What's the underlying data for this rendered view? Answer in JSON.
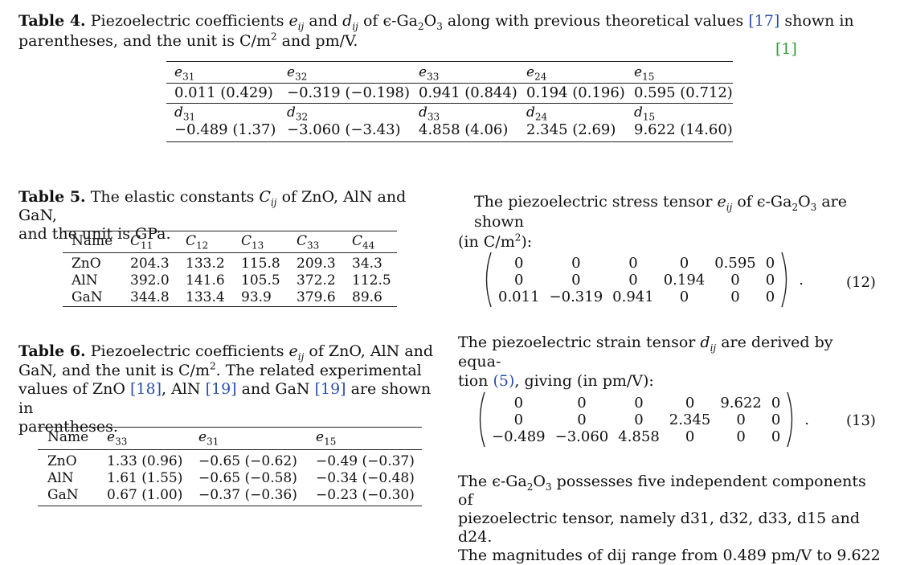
{
  "table4": {
    "caption_label": "Table 4.",
    "caption_line1_a": "Piezoelectric coefficients",
    "caption_line1_e": "e",
    "caption_line1_e_sub": "ij",
    "caption_line1_and": "and",
    "caption_line1_d": "d",
    "caption_line1_d_sub": "ij",
    "caption_line1_b": "of ϵ-Ga",
    "caption_ga_sub": "2",
    "caption_o": "O",
    "caption_o_sub": "3",
    "caption_line1_c": "along with previous theoretical values",
    "caption_ref": "[17]",
    "caption_line1_end": "shown in",
    "caption_line2_a": "parentheses, and the unit is C/m",
    "caption_line2_sup": "2",
    "caption_line2_b": "and pm/V.",
    "margin_ref": "[1]",
    "e_headers": [
      "e31",
      "e32",
      "e33",
      "e24",
      "e15"
    ],
    "e_values": [
      "0.011 (0.429)",
      "−0.319 (−0.198)",
      "0.941 (0.844)",
      "0.194 (0.196)",
      "0.595 (0.712)"
    ],
    "d_headers": [
      "d31",
      "d32",
      "d33",
      "d24",
      "d15"
    ],
    "d_values": [
      "−0.489 (1.37)",
      "−3.060 (−3.43)",
      "4.858 (4.06)",
      "2.345 (2.69)",
      "9.622 (14.60)"
    ]
  },
  "table5": {
    "caption_label": "Table 5.",
    "caption_a": "The elastic constants",
    "caption_c": "C",
    "caption_c_sub": "ij",
    "caption_b": "of ZnO, AlN and GaN,",
    "caption_line2": "and the unit is GPa.",
    "headers": [
      "Name",
      "C11",
      "C12",
      "C13",
      "C33",
      "C44"
    ],
    "rows": [
      [
        "ZnO",
        "204.3",
        "133.2",
        "115.8",
        "209.3",
        "34.3"
      ],
      [
        "AlN",
        "392.0",
        "141.6",
        "105.5",
        "372.2",
        "112.5"
      ],
      [
        "GaN",
        "344.8",
        "133.4",
        "93.9",
        "379.6",
        "89.6"
      ]
    ]
  },
  "table6": {
    "caption_label": "Table 6.",
    "caption_l1_a": "Piezoelectric coefficients",
    "caption_e": "e",
    "caption_e_sub": "ij",
    "caption_l1_b": "of ZnO, AlN and",
    "caption_l2_a": "GaN, and the unit is C/m",
    "caption_l2_sup": "2",
    "caption_l2_b": ". The related experimental",
    "caption_l3_a": "values of ZnO",
    "caption_ref18": "[18]",
    "caption_l3_b": ", AlN",
    "caption_ref19a": "[19]",
    "caption_l3_c": "and GaN",
    "caption_ref19b": "[19]",
    "caption_l3_d": "are shown in",
    "caption_l4": "parentheses.",
    "headers": [
      "Name",
      "e33",
      "e31",
      "e15"
    ],
    "rows": [
      [
        "ZnO",
        "1.33 (0.96)",
        "−0.65 (−0.62)",
        "−0.49 (−0.37)"
      ],
      [
        "AlN",
        "1.61 (1.55)",
        "−0.65 (−0.58)",
        "−0.34 (−0.48)"
      ],
      [
        "GaN",
        "0.67 (1.00)",
        "−0.37 (−0.36)",
        "−0.23 (−0.30)"
      ]
    ]
  },
  "right": {
    "p1_a": "The piezoelectric stress tensor",
    "p1_e": "e",
    "p1_e_sub": "ij",
    "p1_b": "of ϵ-Ga",
    "p1_sub2": "2",
    "p1_o": "O",
    "p1_sub3": "3",
    "p1_c": "are shown",
    "p1_line2_a": "(in C/m",
    "p1_line2_sup": "2",
    "p1_line2_b": "):",
    "matrix12": [
      [
        "0",
        "0",
        "0",
        "0",
        "0.595",
        "0"
      ],
      [
        "0",
        "0",
        "0",
        "0.194",
        "0",
        "0"
      ],
      [
        "0.011",
        "−0.319",
        "0.941",
        "0",
        "0",
        "0"
      ]
    ],
    "eq12_label": "(12)",
    "p2_a": "The piezoelectric strain tensor",
    "p2_d": "d",
    "p2_d_sub": "ij",
    "p2_b": "are derived by equa-",
    "p2_line2_a": "tion",
    "p2_ref5": "(5)",
    "p2_line2_b": ", giving (in pm/V):",
    "matrix13": [
      [
        "0",
        "0",
        "0",
        "0",
        "9.622",
        "0"
      ],
      [
        "0",
        "0",
        "0",
        "2.345",
        "0",
        "0"
      ],
      [
        "−0.489",
        "−3.060",
        "4.858",
        "0",
        "0",
        "0"
      ]
    ],
    "eq13_label": "(13)",
    "p3_line1_a": "The ϵ-Ga",
    "p3_sub2": "2",
    "p3_o": "O",
    "p3_sub3": "3",
    "p3_line1_b": "possesses five independent components of",
    "p3_line2": "piezoelectric tensor, namely d31, d32, d33, d15 and d24.",
    "p3_line3": "The magnitudes of dij range from 0.489 pm/V to 9.622"
  }
}
